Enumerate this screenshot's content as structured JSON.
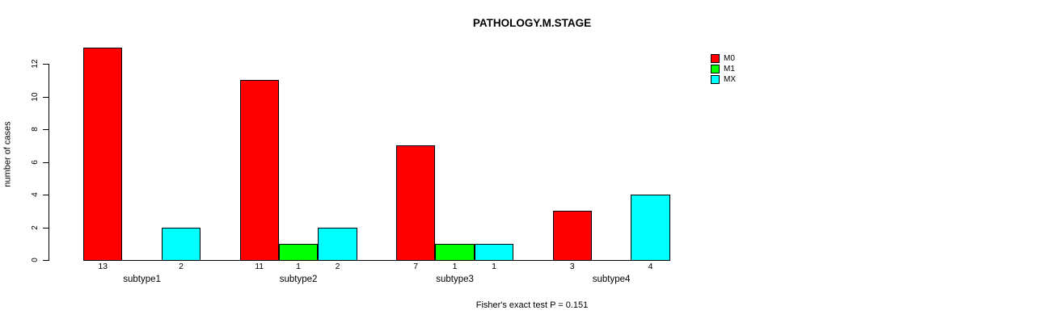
{
  "chart_data": {
    "type": "bar",
    "title": "PATHOLOGY.M.STAGE",
    "xlabel": "",
    "ylabel": "number of cases",
    "categories": [
      "subtype1",
      "subtype2",
      "subtype3",
      "subtype4"
    ],
    "series": [
      {
        "name": "M0",
        "color": "#FF0000",
        "values": [
          13,
          11,
          7,
          3
        ]
      },
      {
        "name": "M1",
        "color": "#00FF00",
        "values": [
          0,
          1,
          1,
          0
        ]
      },
      {
        "name": "MX",
        "color": "#00FFFF",
        "values": [
          2,
          2,
          1,
          4
        ]
      }
    ],
    "bar_count_labels": [
      [
        "13",
        "",
        "2"
      ],
      [
        "11",
        "1",
        "2"
      ],
      [
        "7",
        "1",
        "1"
      ],
      [
        "3",
        "",
        "4"
      ]
    ],
    "ylim": [
      0,
      12
    ],
    "yticks": [
      0,
      2,
      4,
      6,
      8,
      10,
      12
    ],
    "grid": false,
    "legend_position": "top-right",
    "bar_border_color": "#000000",
    "axis_color": "#000000",
    "footnote": "Fisher's exact test P = 0.151"
  }
}
